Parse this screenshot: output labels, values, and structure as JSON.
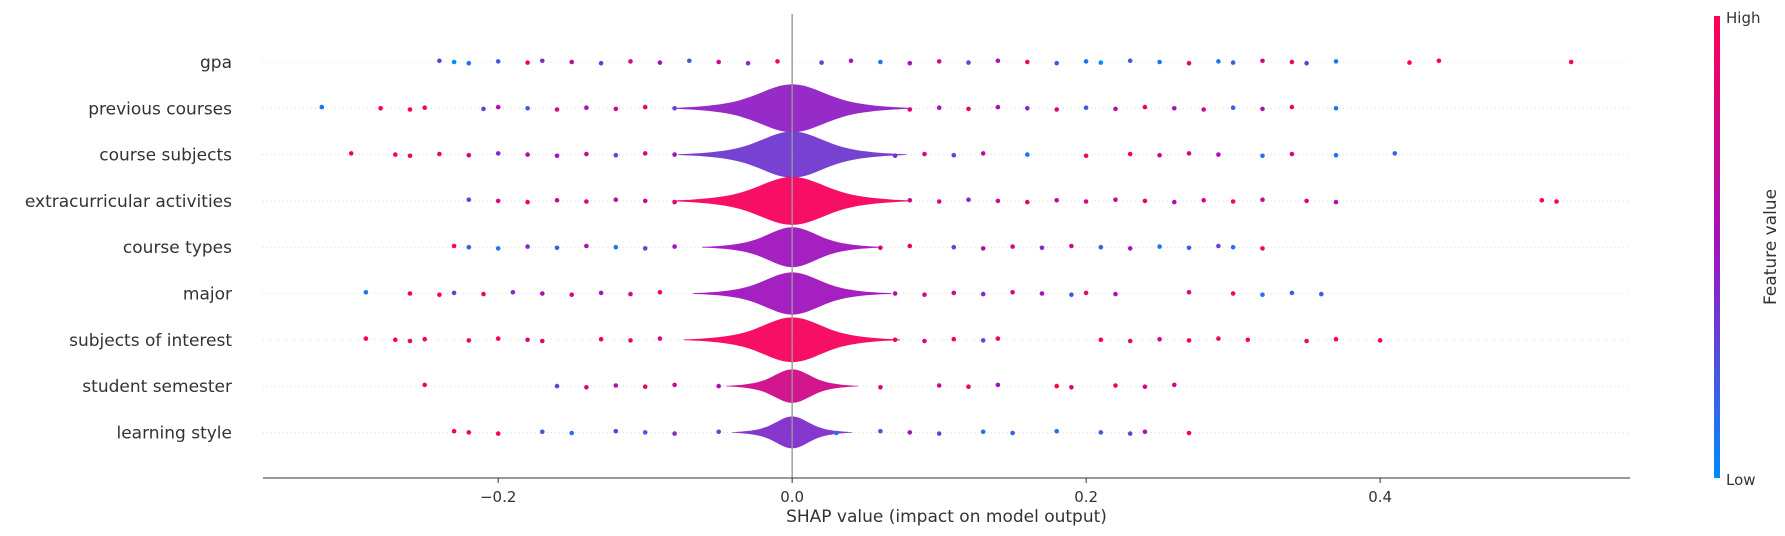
{
  "chart_data": {
    "type": "scatter",
    "subtype": "shap-violin-summary",
    "xlabel": "SHAP value (impact on model output)",
    "xlim": [
      -0.36,
      0.57
    ],
    "xticks": [
      {
        "value": -0.2,
        "label": "−0.2"
      },
      {
        "value": 0.0,
        "label": "0.0"
      },
      {
        "value": 0.2,
        "label": "0.2"
      },
      {
        "value": 0.4,
        "label": "0.4"
      }
    ],
    "zero_line": true,
    "grid": false,
    "colorbar": {
      "label": "Feature value",
      "high_label": "High",
      "low_label": "Low",
      "high_color": "#ff0052",
      "low_color": "#008bfb"
    },
    "features": [
      {
        "name": "gpa",
        "density": 0.0,
        "color": 0.5,
        "points": [
          [
            -0.24,
            0.3
          ],
          [
            -0.23,
            0.0
          ],
          [
            -0.22,
            0.1
          ],
          [
            -0.2,
            0.2
          ],
          [
            -0.18,
            0.95
          ],
          [
            -0.17,
            0.4
          ],
          [
            -0.15,
            0.6
          ],
          [
            -0.13,
            0.3
          ],
          [
            -0.11,
            0.8
          ],
          [
            -0.09,
            0.5
          ],
          [
            -0.07,
            0.2
          ],
          [
            -0.05,
            0.7
          ],
          [
            -0.03,
            0.4
          ],
          [
            -0.01,
            0.9
          ],
          [
            0.02,
            0.3
          ],
          [
            0.04,
            0.6
          ],
          [
            0.06,
            0.1
          ],
          [
            0.08,
            0.5
          ],
          [
            0.1,
            0.8
          ],
          [
            0.12,
            0.3
          ],
          [
            0.14,
            0.6
          ],
          [
            0.16,
            0.9
          ],
          [
            0.18,
            0.2
          ],
          [
            0.2,
            0.1
          ],
          [
            0.21,
            0.0
          ],
          [
            0.23,
            0.2
          ],
          [
            0.25,
            0.1
          ],
          [
            0.27,
            0.9
          ],
          [
            0.29,
            0.1
          ],
          [
            0.3,
            0.2
          ],
          [
            0.32,
            0.8
          ],
          [
            0.34,
            0.9
          ],
          [
            0.35,
            0.3
          ],
          [
            0.37,
            0.1
          ],
          [
            0.42,
            1.0
          ],
          [
            0.44,
            1.0
          ],
          [
            0.53,
            1.0
          ]
        ]
      },
      {
        "name": "previous courses",
        "density": 0.4,
        "color": 0.45,
        "points": [
          [
            -0.32,
            0.1
          ],
          [
            -0.28,
            0.95
          ],
          [
            -0.26,
            1.0
          ],
          [
            -0.25,
            0.9
          ],
          [
            -0.21,
            0.3
          ],
          [
            -0.2,
            0.6
          ],
          [
            -0.18,
            0.2
          ],
          [
            -0.16,
            0.8
          ],
          [
            -0.14,
            0.5
          ],
          [
            -0.12,
            0.7
          ],
          [
            -0.1,
            0.9
          ],
          [
            -0.08,
            0.3
          ],
          [
            0.08,
            0.8
          ],
          [
            0.1,
            0.5
          ],
          [
            0.12,
            0.9
          ],
          [
            0.14,
            0.6
          ],
          [
            0.16,
            0.4
          ],
          [
            0.18,
            0.8
          ],
          [
            0.2,
            0.2
          ],
          [
            0.22,
            0.6
          ],
          [
            0.24,
            0.9
          ],
          [
            0.26,
            0.5
          ],
          [
            0.28,
            0.7
          ],
          [
            0.3,
            0.2
          ],
          [
            0.32,
            0.6
          ],
          [
            0.34,
            0.9
          ],
          [
            0.37,
            0.1
          ]
        ]
      },
      {
        "name": "course subjects",
        "density": 0.38,
        "color": 0.35,
        "points": [
          [
            -0.3,
            0.9
          ],
          [
            -0.27,
            1.0
          ],
          [
            -0.26,
            0.9
          ],
          [
            -0.24,
            0.95
          ],
          [
            -0.22,
            0.8
          ],
          [
            -0.2,
            0.4
          ],
          [
            -0.18,
            0.6
          ],
          [
            -0.16,
            0.5
          ],
          [
            -0.14,
            0.7
          ],
          [
            -0.12,
            0.3
          ],
          [
            -0.1,
            0.8
          ],
          [
            -0.08,
            0.5
          ],
          [
            0.07,
            0.4
          ],
          [
            0.09,
            0.8
          ],
          [
            0.11,
            0.3
          ],
          [
            0.13,
            0.6
          ],
          [
            0.16,
            0.1
          ],
          [
            0.2,
            0.9
          ],
          [
            0.23,
            0.95
          ],
          [
            0.25,
            0.7
          ],
          [
            0.27,
            0.8
          ],
          [
            0.29,
            0.6
          ],
          [
            0.32,
            0.1
          ],
          [
            0.34,
            0.8
          ],
          [
            0.37,
            0.1
          ],
          [
            0.41,
            0.2
          ]
        ]
      },
      {
        "name": "extracurricular activities",
        "density": 0.4,
        "color": 0.95,
        "points": [
          [
            -0.22,
            0.3
          ],
          [
            -0.2,
            0.8
          ],
          [
            -0.18,
            0.9
          ],
          [
            -0.16,
            0.7
          ],
          [
            -0.14,
            0.8
          ],
          [
            -0.12,
            0.6
          ],
          [
            -0.1,
            0.7
          ],
          [
            -0.08,
            0.8
          ],
          [
            0.08,
            0.7
          ],
          [
            0.1,
            0.8
          ],
          [
            0.12,
            0.4
          ],
          [
            0.14,
            0.7
          ],
          [
            0.16,
            0.9
          ],
          [
            0.18,
            0.6
          ],
          [
            0.2,
            0.8
          ],
          [
            0.22,
            0.7
          ],
          [
            0.24,
            0.9
          ],
          [
            0.26,
            0.6
          ],
          [
            0.28,
            0.8
          ],
          [
            0.3,
            0.9
          ],
          [
            0.32,
            0.7
          ],
          [
            0.35,
            0.8
          ],
          [
            0.37,
            0.6
          ],
          [
            0.51,
            1.0
          ],
          [
            0.52,
            1.0
          ]
        ]
      },
      {
        "name": "course types",
        "density": 0.3,
        "color": 0.5,
        "points": [
          [
            -0.23,
            1.0
          ],
          [
            -0.22,
            0.2
          ],
          [
            -0.2,
            0.1
          ],
          [
            -0.18,
            0.4
          ],
          [
            -0.16,
            0.2
          ],
          [
            -0.14,
            0.6
          ],
          [
            -0.12,
            0.1
          ],
          [
            -0.1,
            0.3
          ],
          [
            -0.08,
            0.5
          ],
          [
            0.06,
            0.8
          ],
          [
            0.08,
            0.9
          ],
          [
            0.11,
            0.3
          ],
          [
            0.13,
            0.6
          ],
          [
            0.15,
            0.8
          ],
          [
            0.17,
            0.4
          ],
          [
            0.19,
            0.7
          ],
          [
            0.21,
            0.2
          ],
          [
            0.23,
            0.5
          ],
          [
            0.25,
            0.1
          ],
          [
            0.27,
            0.2
          ],
          [
            0.29,
            0.3
          ],
          [
            0.3,
            0.1
          ],
          [
            0.32,
            0.95
          ]
        ]
      },
      {
        "name": "major",
        "density": 0.33,
        "color": 0.5,
        "points": [
          [
            -0.29,
            0.1
          ],
          [
            -0.26,
            0.95
          ],
          [
            -0.24,
            1.0
          ],
          [
            -0.23,
            0.3
          ],
          [
            -0.21,
            0.9
          ],
          [
            -0.19,
            0.4
          ],
          [
            -0.17,
            0.6
          ],
          [
            -0.15,
            0.8
          ],
          [
            -0.13,
            0.5
          ],
          [
            -0.11,
            0.7
          ],
          [
            -0.09,
            0.9
          ],
          [
            0.07,
            0.6
          ],
          [
            0.09,
            0.8
          ],
          [
            0.11,
            0.7
          ],
          [
            0.13,
            0.4
          ],
          [
            0.15,
            0.8
          ],
          [
            0.17,
            0.5
          ],
          [
            0.19,
            0.2
          ],
          [
            0.2,
            0.9
          ],
          [
            0.22,
            0.6
          ],
          [
            0.27,
            0.8
          ],
          [
            0.3,
            0.9
          ],
          [
            0.32,
            0.1
          ],
          [
            0.34,
            0.2
          ],
          [
            0.36,
            0.2
          ]
        ]
      },
      {
        "name": "subjects of interest",
        "density": 0.36,
        "color": 0.95,
        "points": [
          [
            -0.29,
            1.0
          ],
          [
            -0.27,
            0.95
          ],
          [
            -0.26,
            0.9
          ],
          [
            -0.25,
            1.0
          ],
          [
            -0.22,
            0.9
          ],
          [
            -0.2,
            1.0
          ],
          [
            -0.18,
            0.8
          ],
          [
            -0.17,
            0.9
          ],
          [
            -0.13,
            1.0
          ],
          [
            -0.11,
            0.9
          ],
          [
            -0.09,
            0.8
          ],
          [
            0.07,
            0.9
          ],
          [
            0.09,
            0.8
          ],
          [
            0.11,
            1.0
          ],
          [
            0.13,
            0.3
          ],
          [
            0.14,
            1.0
          ],
          [
            0.21,
            1.0
          ],
          [
            0.23,
            0.9
          ],
          [
            0.25,
            0.8
          ],
          [
            0.27,
            1.0
          ],
          [
            0.29,
            0.9
          ],
          [
            0.31,
            1.0
          ],
          [
            0.35,
            0.9
          ],
          [
            0.37,
            1.0
          ],
          [
            0.4,
            1.0
          ]
        ]
      },
      {
        "name": "student semester",
        "density": 0.22,
        "color": 0.75,
        "points": [
          [
            -0.25,
            1.0
          ],
          [
            -0.16,
            0.3
          ],
          [
            -0.14,
            0.8
          ],
          [
            -0.12,
            0.6
          ],
          [
            -0.1,
            0.9
          ],
          [
            -0.08,
            0.7
          ],
          [
            -0.05,
            0.6
          ],
          [
            0.06,
            0.8
          ],
          [
            0.1,
            0.7
          ],
          [
            0.12,
            0.9
          ],
          [
            0.14,
            0.5
          ],
          [
            0.18,
            1.0
          ],
          [
            0.19,
            0.8
          ],
          [
            0.22,
            0.9
          ],
          [
            0.24,
            0.8
          ],
          [
            0.26,
            0.7
          ]
        ]
      },
      {
        "name": "learning style",
        "density": 0.2,
        "color": 0.4,
        "points": [
          [
            -0.23,
            1.0
          ],
          [
            -0.22,
            0.9
          ],
          [
            -0.2,
            1.0
          ],
          [
            -0.17,
            0.2
          ],
          [
            -0.15,
            0.1
          ],
          [
            -0.12,
            0.3
          ],
          [
            -0.1,
            0.2
          ],
          [
            -0.08,
            0.4
          ],
          [
            -0.05,
            0.3
          ],
          [
            0.03,
            0.1
          ],
          [
            0.06,
            0.2
          ],
          [
            0.08,
            0.5
          ],
          [
            0.1,
            0.3
          ],
          [
            0.13,
            0.1
          ],
          [
            0.15,
            0.2
          ],
          [
            0.18,
            0.1
          ],
          [
            0.21,
            0.2
          ],
          [
            0.23,
            0.3
          ],
          [
            0.24,
            0.6
          ],
          [
            0.27,
            1.0
          ]
        ]
      }
    ]
  }
}
